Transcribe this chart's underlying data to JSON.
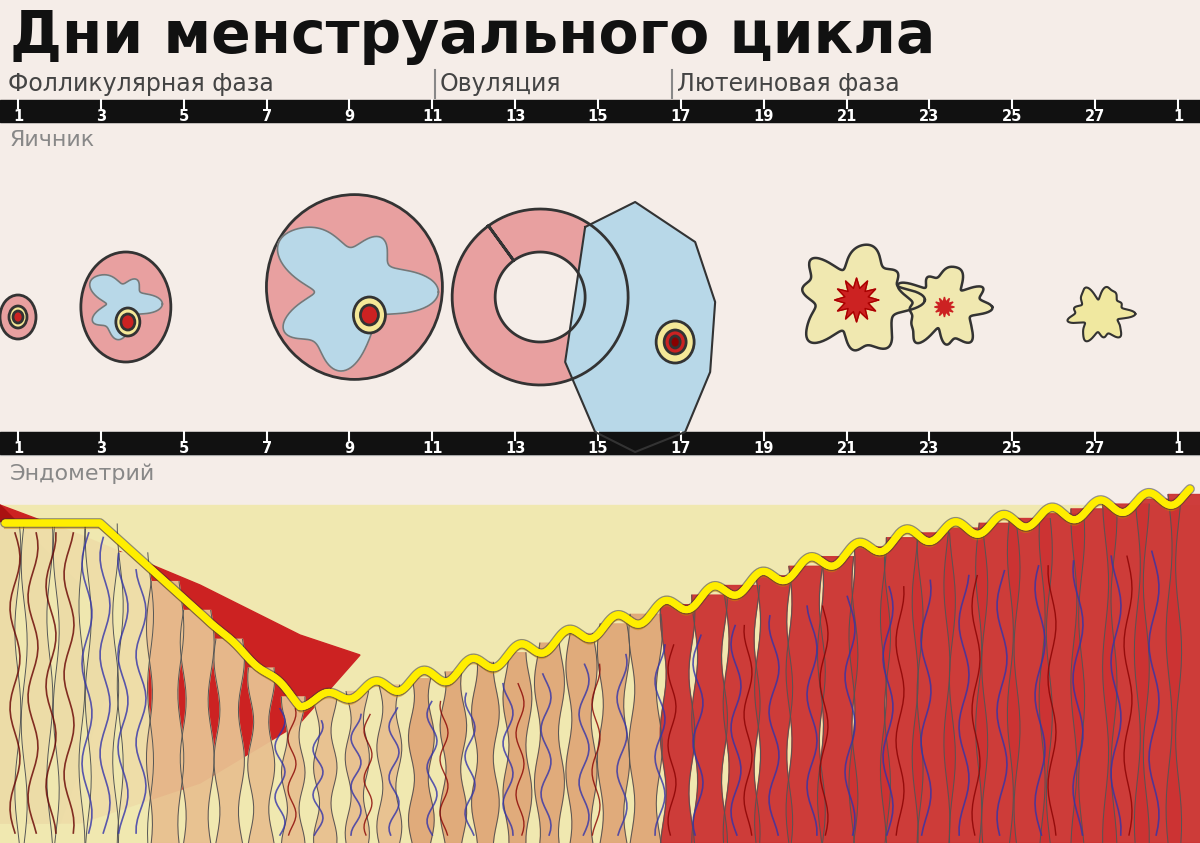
{
  "title": "Дни менструального цикла",
  "phase1_label": "Фолликулярная фаза",
  "phase2_label": "Овуляция",
  "phase3_label": "Лютеиновая фаза",
  "ovary_label": "Яичник",
  "endo_label": "Эндометрий",
  "day_ticks": [
    "1",
    "3",
    "5",
    "7",
    "9",
    "11",
    "13",
    "15",
    "17",
    "19",
    "21",
    "23",
    "25",
    "27",
    "1"
  ],
  "bg_color": "#f5ede8",
  "pink_follicle": "#e8a0a0",
  "light_blue": "#b8d8e8",
  "cream_center": "#f5e898",
  "red_center": "#cc2222",
  "cream_cl": "#f0e8b0",
  "yellow_line": "#ffee00",
  "dark_outline": "#333333",
  "ruler_color": "#111111",
  "label_gray": "#888888",
  "phase_div_color": "#888888"
}
